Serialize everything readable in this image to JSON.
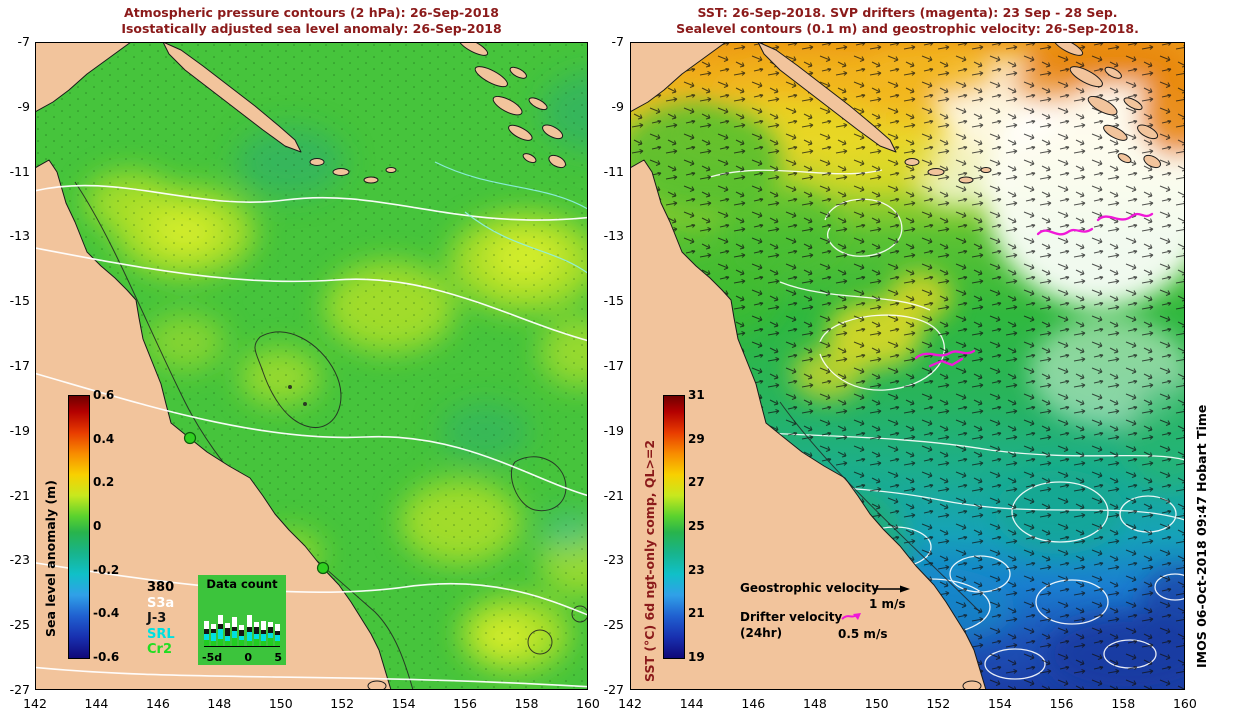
{
  "figure": {
    "watermark": "IMOS 06-Oct-2018 09:47 Hobart Time"
  },
  "axes": {
    "lat_ticks": [
      "-7",
      "-9",
      "-11",
      "-13",
      "-15",
      "-17",
      "-19",
      "-21",
      "-23",
      "-25",
      "-27"
    ],
    "lon_ticks": [
      "142",
      "144",
      "146",
      "148",
      "150",
      "152",
      "154",
      "156",
      "158",
      "160"
    ]
  },
  "left_panel": {
    "title_line1": "Atmospheric pressure contours (2 hPa): 26-Sep-2018",
    "title_line2": "Isostatically adjusted sea level anomaly: 26-Sep-2018",
    "colorbar": {
      "label": "Sea level anomaly (m)",
      "ticks": [
        "0.6",
        "0.4",
        "0.2",
        "0",
        "-0.2",
        "-0.4",
        "-0.6"
      ]
    },
    "data_count": {
      "total": "380",
      "title": "Data count",
      "satellites": [
        {
          "label": "S3a",
          "color": "#ffffff"
        },
        {
          "label": "J-3",
          "color": "#141414"
        },
        {
          "label": "SRL",
          "color": "#00e0e0"
        },
        {
          "label": "Cr2",
          "color": "#22dd22"
        }
      ],
      "segment_colors": [
        "#22cc22",
        "#00e0e0",
        "#141414",
        "#ffffff"
      ],
      "bars": [
        [
          6,
          6,
          5,
          8
        ],
        [
          5,
          8,
          4,
          5
        ],
        [
          7,
          10,
          5,
          9
        ],
        [
          5,
          5,
          8,
          5
        ],
        [
          8,
          7,
          4,
          10
        ],
        [
          6,
          4,
          6,
          5
        ],
        [
          5,
          9,
          5,
          12
        ],
        [
          7,
          5,
          7,
          5
        ],
        [
          5,
          7,
          4,
          9
        ],
        [
          8,
          5,
          6,
          5
        ],
        [
          5,
          6,
          4,
          7
        ]
      ],
      "x_ticks": [
        "-5d",
        "0",
        "5"
      ]
    }
  },
  "right_panel": {
    "title_line1": "SST: 26-Sep-2018. SVP drifters (magenta): 23 Sep - 28 Sep.",
    "title_line2": "Sealevel contours (0.1 m) and geostrophic velocity: 26-Sep-2018.",
    "colorbar": {
      "label": "SST (°C) 6d ngt-only comp, QL>=2",
      "ticks": [
        "31",
        "29",
        "27",
        "25",
        "23",
        "21",
        "19"
      ]
    },
    "velocity_legend": {
      "geostrophic_label": "Geostrophic velocity",
      "geostrophic_scale": "1 m/s",
      "drifter_label": "Drifter velocity",
      "drifter_duration": "(24hr)",
      "drifter_scale": "0.5 m/s"
    }
  },
  "colors": {
    "land": "#f2c49c",
    "title_text": "#8b1a1a",
    "drifter_magenta": "#f018d8",
    "sla_ocean_green": "#46c43c",
    "histogram_bg": "#3cc43c"
  },
  "chart_data": [
    {
      "type": "heatmap",
      "title": "Isostatically adjusted sea level anomaly",
      "date": "26-Sep-2018",
      "x_range": [
        142,
        160
      ],
      "y_range": [
        -27,
        -7
      ],
      "colorbar_units": "m",
      "colorbar_range": [
        -0.6,
        0.6
      ],
      "colorbar_ticks": [
        0.6,
        0.4,
        0.2,
        0,
        -0.2,
        -0.4,
        -0.6
      ]
    },
    {
      "type": "heatmap",
      "title": "SST 6d ngt-only comp, QL>=2",
      "date": "26-Sep-2018",
      "x_range": [
        142,
        160
      ],
      "y_range": [
        -27,
        -7
      ],
      "colorbar_units": "°C",
      "colorbar_range": [
        19,
        31
      ],
      "colorbar_ticks": [
        31,
        29,
        27,
        25,
        23,
        21,
        19
      ]
    }
  ]
}
